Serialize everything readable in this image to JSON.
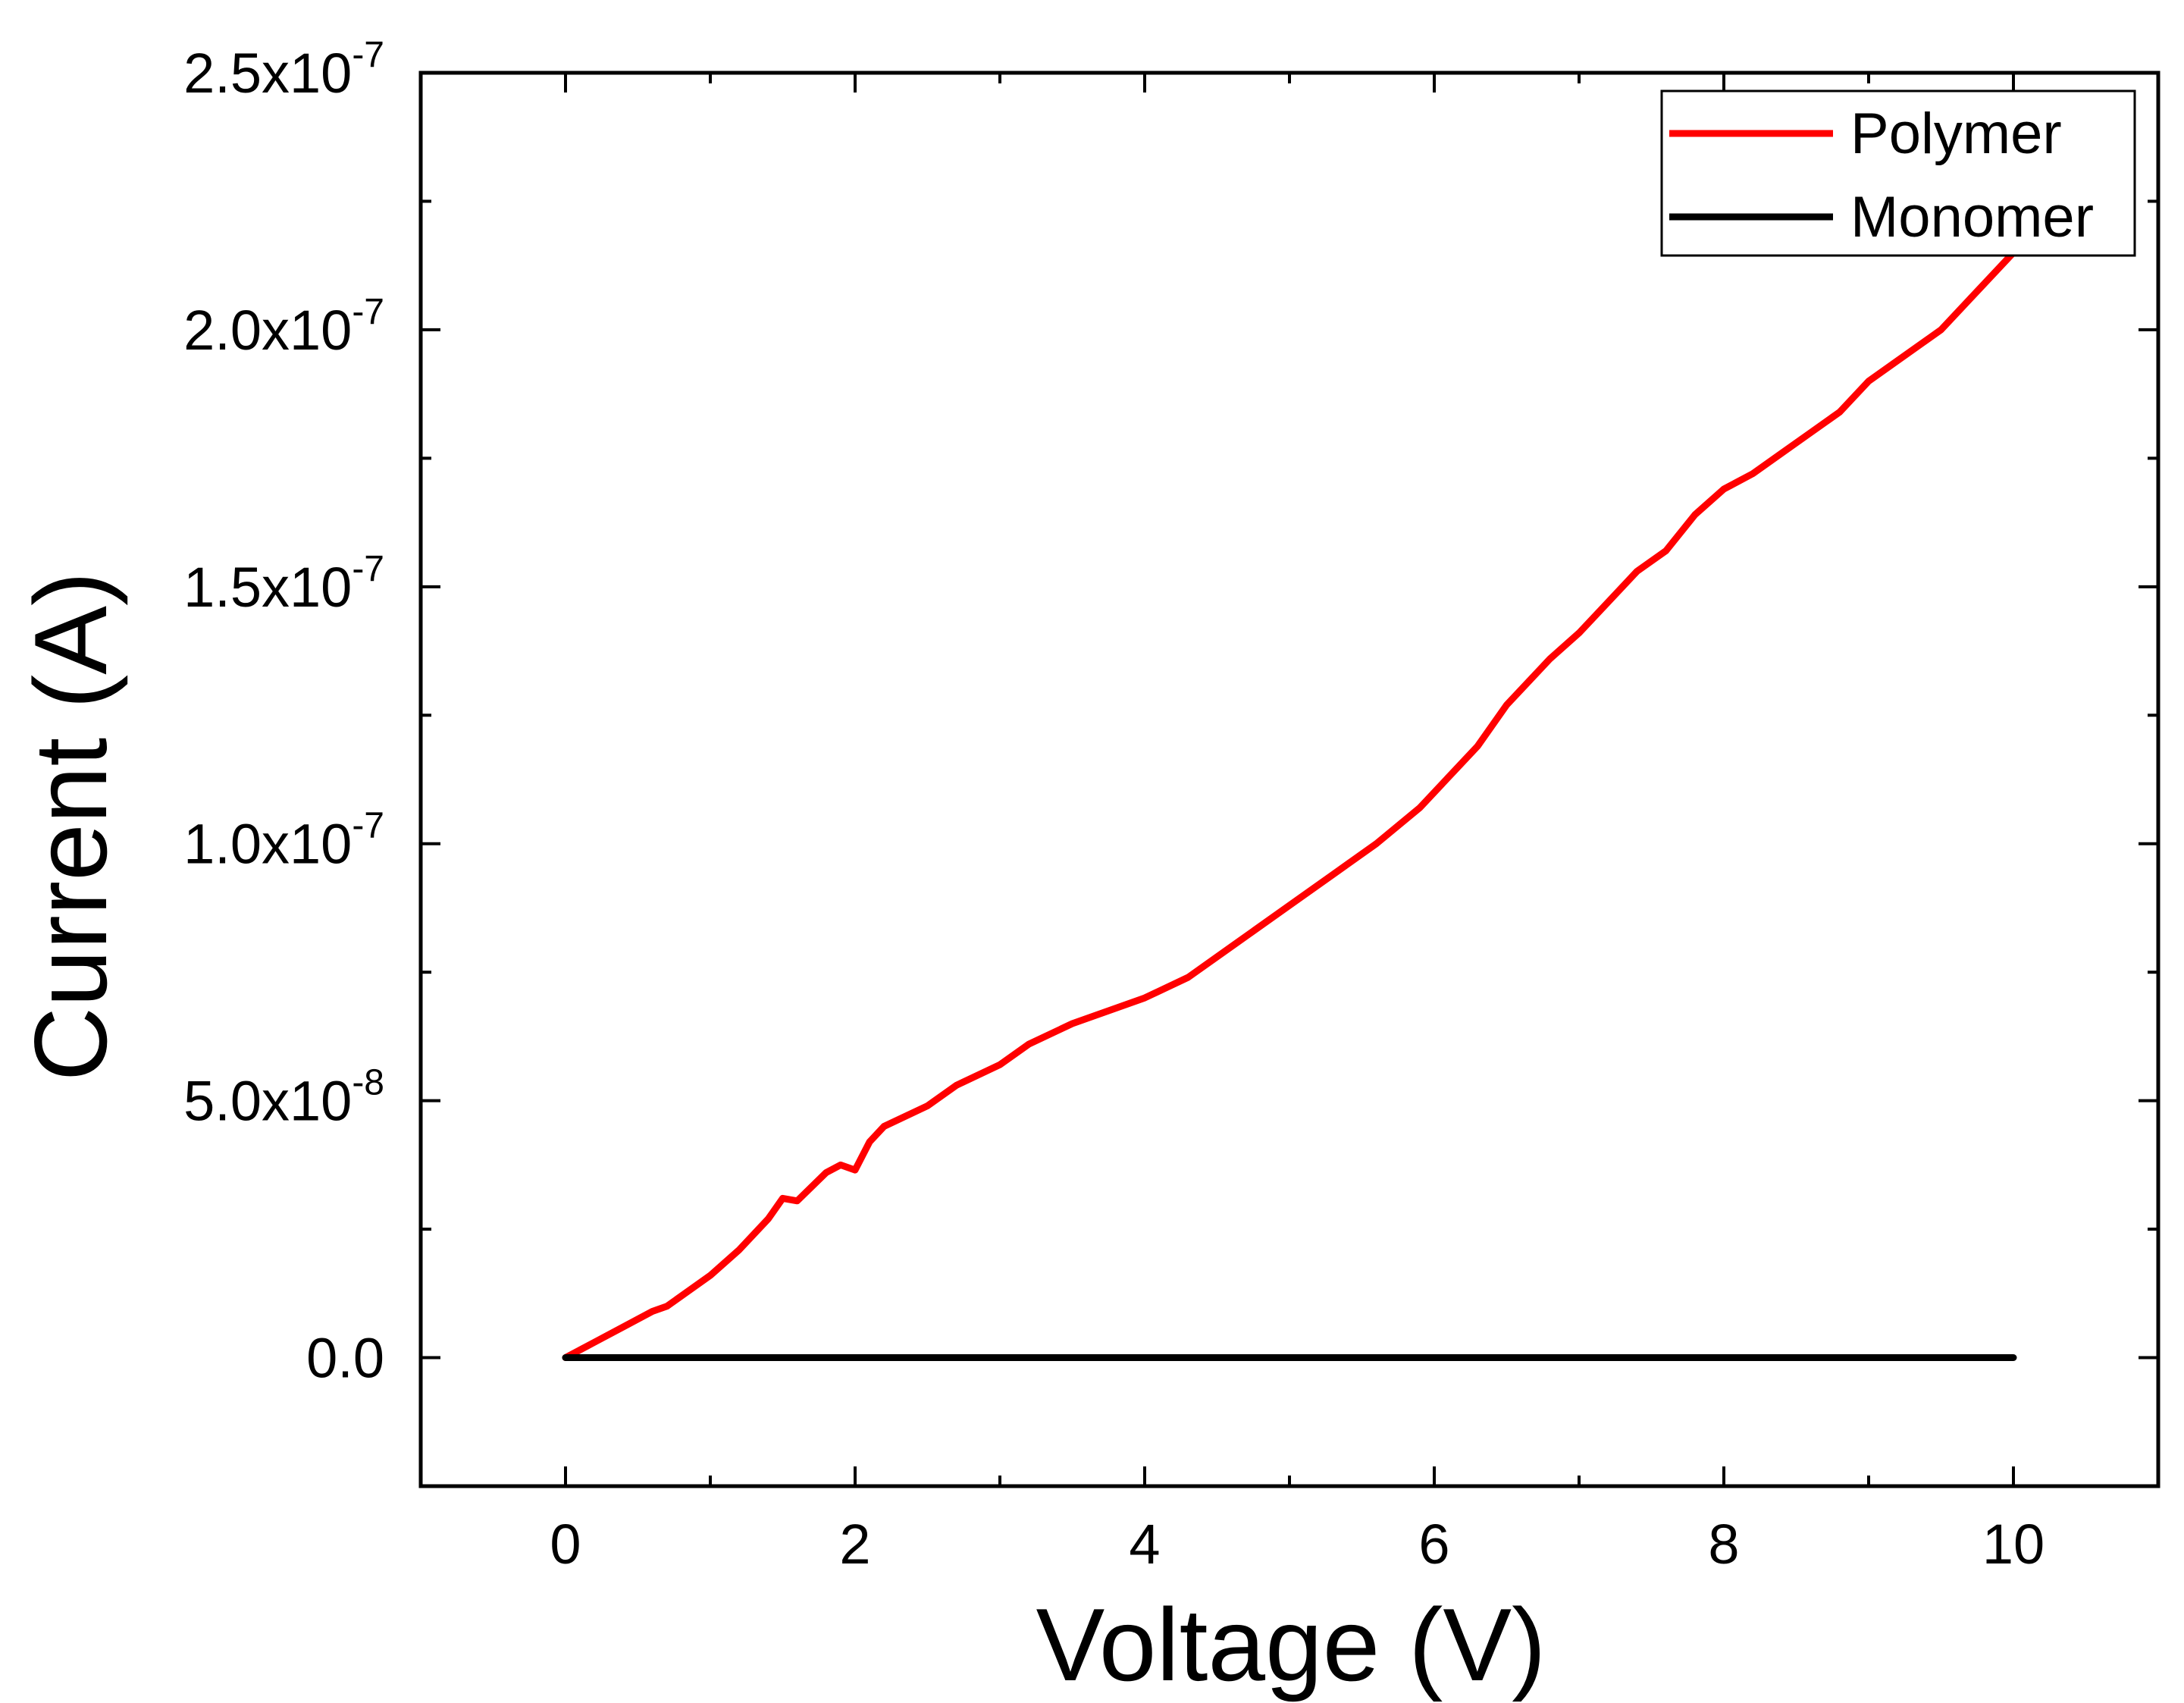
{
  "chart_data": {
    "type": "line",
    "xlabel": "Voltage (V)",
    "ylabel": "Current (A)",
    "xlim": [
      -1,
      11
    ],
    "ylim": [
      -2.5e-08,
      2.5e-07
    ],
    "x_ticks": [
      0,
      2,
      4,
      6,
      8,
      10
    ],
    "x_tick_labels": [
      "0",
      "2",
      "4",
      "6",
      "8",
      "10"
    ],
    "y_ticks": [
      0,
      5e-08,
      1e-07,
      1.5e-07,
      2e-07,
      2.5e-07
    ],
    "y_tick_labels": [
      {
        "mantissa": "0.0",
        "exponent": ""
      },
      {
        "mantissa": "5.0x10",
        "exponent": "-8"
      },
      {
        "mantissa": "1.0x10",
        "exponent": "-7"
      },
      {
        "mantissa": "1.5x10",
        "exponent": "-7"
      },
      {
        "mantissa": "2.0x10",
        "exponent": "-7"
      },
      {
        "mantissa": "2.5x10",
        "exponent": "-7"
      }
    ],
    "legend_position": "top-right",
    "series": [
      {
        "name": "Polymer",
        "color": "#ff0000",
        "x": [
          0,
          0.2,
          0.4,
          0.6,
          0.7,
          1.0,
          1.2,
          1.4,
          1.5,
          1.6,
          1.8,
          1.9,
          2.0,
          2.1,
          2.2,
          2.5,
          2.7,
          3.0,
          3.2,
          3.5,
          4.0,
          4.3,
          4.6,
          5.0,
          5.3,
          5.6,
          5.9,
          6.1,
          6.3,
          6.5,
          6.8,
          7.0,
          7.2,
          7.4,
          7.6,
          7.8,
          8.0,
          8.2,
          8.4,
          8.6,
          8.8,
          9.0,
          9.2,
          9.5,
          9.7,
          10.0
        ],
        "y": [
          0,
          3e-09,
          6e-09,
          9e-09,
          1e-08,
          1.6e-08,
          2.1e-08,
          2.7e-08,
          3.1e-08,
          3.05e-08,
          3.6e-08,
          3.75e-08,
          3.65e-08,
          4.2e-08,
          4.5e-08,
          4.9e-08,
          5.3e-08,
          5.7e-08,
          6.1e-08,
          6.5e-08,
          7e-08,
          7.4e-08,
          8e-08,
          8.8e-08,
          9.4e-08,
          1e-07,
          1.07e-07,
          1.13e-07,
          1.19e-07,
          1.27e-07,
          1.36e-07,
          1.41e-07,
          1.47e-07,
          1.53e-07,
          1.57e-07,
          1.64e-07,
          1.69e-07,
          1.72e-07,
          1.76e-07,
          1.8e-07,
          1.84e-07,
          1.9e-07,
          1.94e-07,
          2e-07,
          2.06e-07,
          2.15e-07
        ]
      },
      {
        "name": "Monomer",
        "color": "#000000",
        "x": [
          0,
          10
        ],
        "y": [
          0,
          0
        ]
      }
    ]
  }
}
